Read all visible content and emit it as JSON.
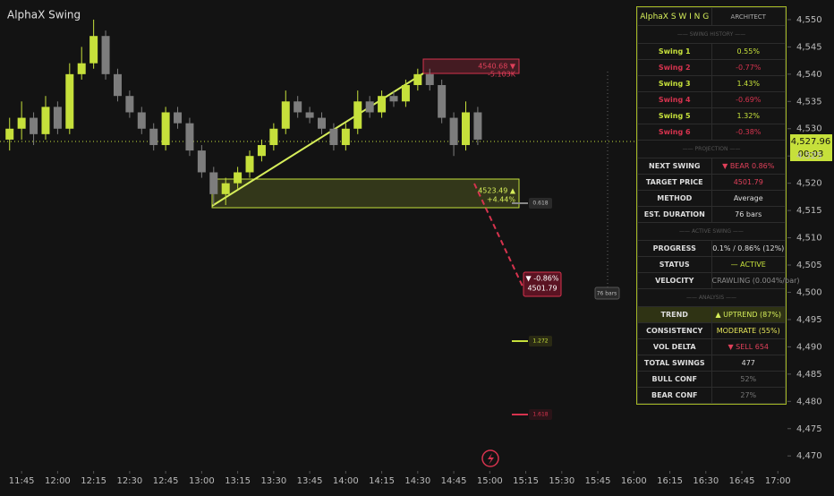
{
  "chart_data": {
    "type": "candlestick",
    "title": "AlphaX Swing",
    "x": [
      "11:40",
      "11:45",
      "11:50",
      "11:55",
      "12:00",
      "12:05",
      "12:10",
      "12:15",
      "12:20",
      "12:25",
      "12:30",
      "12:35",
      "12:40",
      "12:45",
      "12:50",
      "12:55",
      "13:00",
      "13:05",
      "13:10",
      "13:15",
      "13:20",
      "13:25",
      "13:30",
      "13:35",
      "13:40",
      "13:45",
      "13:50",
      "13:55",
      "14:00",
      "14:05",
      "14:10",
      "14:15",
      "14:20",
      "14:25",
      "14:30",
      "14:35",
      "14:40",
      "14:45",
      "14:50",
      "14:55"
    ],
    "open": [
      4528,
      4530,
      4532,
      4529,
      4534,
      4530,
      4540,
      4542,
      4547,
      4540,
      4536,
      4533,
      4530,
      4527,
      4533,
      4531,
      4526,
      4522,
      4518,
      4520,
      4522,
      4525,
      4527,
      4530,
      4535,
      4533,
      4532,
      4530,
      4527,
      4530,
      4535,
      4533,
      4536,
      4535,
      4538,
      4540,
      4538,
      4532,
      4527,
      4533
    ],
    "high": [
      4532,
      4535,
      4533,
      4536,
      4535,
      4542,
      4545,
      4550,
      4548,
      4541,
      4537,
      4534,
      4531,
      4534,
      4534,
      4532,
      4527,
      4523,
      4521,
      4523,
      4526,
      4528,
      4531,
      4537,
      4536,
      4534,
      4533,
      4531,
      4531,
      4537,
      4536,
      4537,
      4537,
      4539,
      4541,
      4541,
      4539,
      4533,
      4535,
      4534
    ],
    "low": [
      4526,
      4528,
      4527,
      4528,
      4529,
      4529,
      4539,
      4541,
      4539,
      4535,
      4532,
      4529,
      4526,
      4526,
      4530,
      4525,
      4521,
      4516,
      4516,
      4519,
      4521,
      4524,
      4526,
      4529,
      4532,
      4531,
      4529,
      4526,
      4526,
      4529,
      4532,
      4532,
      4534,
      4534,
      4537,
      4537,
      4531,
      4525,
      4526,
      4527
    ],
    "close": [
      4530,
      4532,
      4529,
      4534,
      4530,
      4540,
      4542,
      4547,
      4540,
      4536,
      4533,
      4530,
      4527,
      4533,
      4531,
      4526,
      4522,
      4518,
      4520,
      4522,
      4525,
      4527,
      4530,
      4535,
      4533,
      4532,
      4530,
      4527,
      4530,
      4535,
      4533,
      4536,
      4535,
      4538,
      4540,
      4538,
      4532,
      4527,
      4533,
      4528
    ],
    "up_color": "#c6e03b",
    "down_color": "#7d7d7d",
    "xlim": [
      "11:36",
      "17:04"
    ],
    "xticks": [
      "11:45",
      "12:00",
      "12:15",
      "12:30",
      "12:45",
      "13:00",
      "13:15",
      "13:30",
      "13:45",
      "14:00",
      "14:15",
      "14:30",
      "14:45",
      "15:00",
      "15:15",
      "15:30",
      "15:45",
      "16:00",
      "16:15",
      "16:30",
      "16:45",
      "17:00"
    ],
    "ylim": [
      4467.9,
      4553.6
    ],
    "yticks": [
      {
        "value": 4550,
        "label": "4,550"
      },
      {
        "value": 4545,
        "label": "4,545"
      },
      {
        "value": 4540,
        "label": "4,540"
      },
      {
        "value": 4535,
        "label": "4,535"
      },
      {
        "value": 4530,
        "label": "4,530"
      },
      {
        "value": 4525,
        "label": "4,525"
      },
      {
        "value": 4520,
        "label": "4,520"
      },
      {
        "value": 4515,
        "label": "4,515"
      },
      {
        "value": 4510,
        "label": "4,510"
      },
      {
        "value": 4505,
        "label": "4,505"
      },
      {
        "value": 4500,
        "label": "4,500"
      },
      {
        "value": 4495,
        "label": "4,495"
      },
      {
        "value": 4490,
        "label": "4,490"
      },
      {
        "value": 4485,
        "label": "4,485"
      },
      {
        "value": 4480,
        "label": "4,480"
      },
      {
        "value": 4475,
        "label": "4,475"
      },
      {
        "value": 4470,
        "label": "4,470"
      }
    ],
    "last_price": "4,527.96",
    "countdown": "00:03",
    "annotations": {
      "high_price": "4540.68 ▼",
      "high_delta": "-5.103K",
      "zone_price": "4523.49 ▲",
      "zone_delta": "+4.44%",
      "target_pct": "▼ -0.86%",
      "target_price": "4501.79",
      "fib_1": "0.618",
      "fib_2": "1.272",
      "fib_3": "1.618",
      "bars": "76 bars"
    }
  },
  "panel": {
    "title": "AlphaX S W I N G",
    "subtitle": "ARCHITECT",
    "sections": [
      {
        "title": "—— SWING HISTORY ——",
        "rows": [
          {
            "label": "Swing 1",
            "value": "0.55%",
            "label_color": "#c6e03b",
            "value_color": "#c6e03b"
          },
          {
            "label": "Swing 2",
            "value": "-0.77%",
            "label_color": "#d6334e",
            "value_color": "#d6334e"
          },
          {
            "label": "Swing 3",
            "value": "1.43%",
            "label_color": "#c6e03b",
            "value_color": "#c6e03b"
          },
          {
            "label": "Swing 4",
            "value": "-0.69%",
            "label_color": "#d6334e",
            "value_color": "#d6334e"
          },
          {
            "label": "Swing 5",
            "value": "1.32%",
            "label_color": "#c6e03b",
            "value_color": "#c6e03b"
          },
          {
            "label": "Swing 6",
            "value": "-0.38%",
            "label_color": "#d6334e",
            "value_color": "#d6334e"
          }
        ]
      },
      {
        "title": "—— PROJECTION ——",
        "rows": [
          {
            "label": "NEXT SWING",
            "value": "▼ BEAR  0.86%",
            "value_color": "#e0405a"
          },
          {
            "label": "TARGET PRICE",
            "value": "4501.79",
            "value_color": "#e0405a"
          },
          {
            "label": "METHOD",
            "value": "Average"
          },
          {
            "label": "EST. DURATION",
            "value": "76 bars"
          }
        ]
      },
      {
        "title": "—— ACTIVE SWING ——",
        "rows": [
          {
            "label": "PROGRESS",
            "value": "0.1% / 0.86%  (12%)"
          },
          {
            "label": "STATUS",
            "value": "— ACTIVE",
            "value_color": "#c6e03b"
          },
          {
            "label": "VELOCITY",
            "value": "CRAWLING  (0.004%/bar)",
            "value_color": "#8a8a8a"
          }
        ]
      },
      {
        "title": "—— ANALYSIS ——",
        "rows": [
          {
            "label": "TREND",
            "value": "▲ UPTREND  (87%)",
            "value_color": "#d6ee5a"
          },
          {
            "label": "CONSISTENCY",
            "value": "MODERATE  (55%)",
            "value_color": "#e8e85a"
          },
          {
            "label": "VOL DELTA",
            "value": "▼ SELL  654",
            "value_color": "#e0405a"
          },
          {
            "label": "TOTAL SWINGS",
            "value": "477"
          },
          {
            "label": "BULL CONF",
            "value": "52%",
            "value_color": "#777"
          },
          {
            "label": "BEAR CONF",
            "value": "27%",
            "value_color": "#777"
          }
        ]
      }
    ]
  }
}
